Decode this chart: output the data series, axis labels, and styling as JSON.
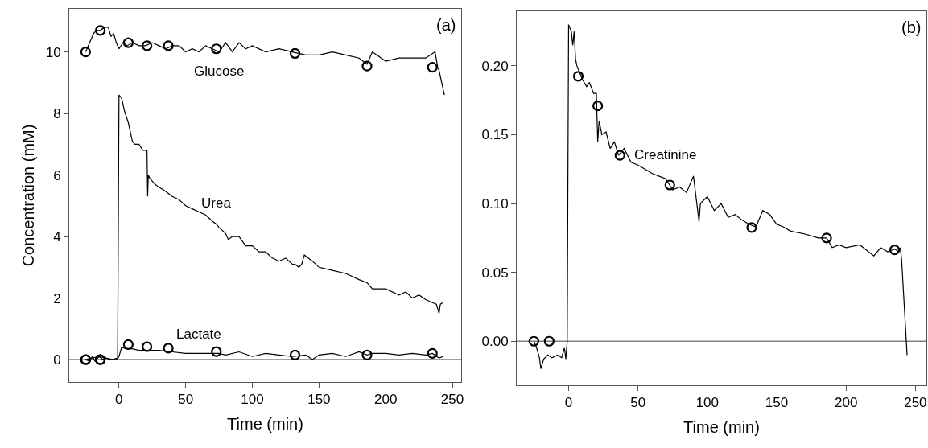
{
  "chart_data": [
    {
      "type": "line",
      "xlabel": "Time (min)",
      "ylabel": "Concentration (mM)",
      "xlim": [
        -37.3,
        256.6
      ],
      "ylim": [
        -0.73,
        11.4
      ],
      "xticks": [
        0,
        50,
        100,
        150,
        200,
        250
      ],
      "yticks": [
        0,
        2,
        4,
        6,
        8,
        10
      ],
      "grid": false,
      "legend": false,
      "ref_lines": [
        {
          "axis": "y",
          "value": 0,
          "color": "#808080"
        }
      ],
      "annotations": [
        "(a)"
      ],
      "series": [
        {
          "name": "Glucose",
          "marker": "none",
          "color": "#000000",
          "x": [
            -25,
            -22,
            -19,
            -17,
            -14,
            -11,
            -8,
            -6,
            -4,
            -2,
            0,
            3,
            6,
            10,
            15,
            20,
            25,
            30,
            35,
            40,
            45,
            50,
            55,
            60,
            65,
            70,
            75,
            80,
            85,
            90,
            95,
            100,
            110,
            120,
            130,
            140,
            150,
            160,
            170,
            180,
            186,
            190,
            200,
            210,
            220,
            230,
            237,
            239,
            240,
            242,
            244
          ],
          "values": [
            10.0,
            10.3,
            10.6,
            10.7,
            10.7,
            10.8,
            10.8,
            10.5,
            10.6,
            10.3,
            10.1,
            10.3,
            10.2,
            10.3,
            10.2,
            10.2,
            10.3,
            10.2,
            10.1,
            10.2,
            10.2,
            10.0,
            10.1,
            10.0,
            10.2,
            10.1,
            10.0,
            10.3,
            10.0,
            10.3,
            10.1,
            10.2,
            10.0,
            10.1,
            10.0,
            9.9,
            9.9,
            10.0,
            9.9,
            9.8,
            9.6,
            10.0,
            9.7,
            9.8,
            9.8,
            9.8,
            10.0,
            9.5,
            9.4,
            9.0,
            8.6
          ]
        },
        {
          "type": "scatter",
          "marker": "circle",
          "color": "#000000",
          "x": [
            -25,
            -14,
            7,
            21,
            37,
            73,
            132,
            186,
            235
          ],
          "values": [
            10.0,
            10.7,
            10.3,
            10.2,
            10.2,
            10.1,
            9.95,
            9.54,
            9.5
          ]
        },
        {
          "name": "Urea",
          "marker": "none",
          "color": "#000000",
          "x": [
            -25,
            -20,
            -15,
            -10,
            -5,
            -1,
            0,
            2,
            4,
            7,
            10,
            12,
            15,
            18,
            21,
            21.5,
            22,
            23,
            27,
            30,
            34,
            37,
            40,
            45,
            50,
            55,
            60,
            65,
            70,
            73,
            75,
            80,
            82,
            85,
            90,
            95,
            100,
            105,
            110,
            115,
            120,
            125,
            130,
            132,
            135,
            137,
            139,
            145,
            150,
            160,
            170,
            175,
            180,
            186,
            190,
            200,
            210,
            215,
            220,
            225,
            230,
            235,
            238,
            240,
            241,
            243
          ],
          "values": [
            0,
            0.05,
            0.1,
            0.05,
            0.0,
            0.05,
            8.6,
            8.5,
            8.1,
            7.7,
            7.1,
            7.0,
            7.0,
            6.8,
            6.8,
            5.3,
            6.0,
            5.9,
            5.7,
            5.6,
            5.5,
            5.4,
            5.3,
            5.2,
            5.0,
            4.9,
            4.8,
            4.7,
            4.5,
            4.4,
            4.3,
            4.1,
            3.9,
            4.0,
            4.0,
            3.7,
            3.7,
            3.5,
            3.5,
            3.3,
            3.2,
            3.3,
            3.1,
            3.1,
            3.0,
            3.1,
            3.4,
            3.2,
            3.0,
            2.9,
            2.8,
            2.7,
            2.6,
            2.5,
            2.3,
            2.3,
            2.1,
            2.2,
            2.0,
            2.1,
            1.95,
            1.85,
            1.8,
            1.5,
            1.8,
            1.85
          ]
        },
        {
          "type": "scatter",
          "marker": "circle",
          "color": "#000000",
          "x": [
            -25,
            -14
          ],
          "values": [
            0,
            0
          ]
        },
        {
          "name": "Lactate",
          "marker": "none",
          "color": "#000000",
          "x": [
            -25,
            -22,
            -20,
            -18,
            -15,
            -12,
            -10,
            -5,
            -2,
            0,
            2,
            5,
            10,
            15,
            20,
            25,
            30,
            40,
            50,
            60,
            70,
            75,
            80,
            90,
            100,
            110,
            120,
            130,
            140,
            145,
            150,
            160,
            170,
            180,
            186,
            190,
            200,
            210,
            220,
            230,
            235,
            240,
            243
          ],
          "values": [
            0,
            -0.05,
            0.1,
            -0.05,
            0.1,
            0,
            0.05,
            0,
            0,
            0.1,
            0.4,
            0.35,
            0.35,
            0.3,
            0.3,
            0.3,
            0.3,
            0.25,
            0.2,
            0.2,
            0.2,
            0.2,
            0.15,
            0.25,
            0.1,
            0.2,
            0.15,
            0.1,
            0.15,
            0,
            0.15,
            0.2,
            0.1,
            0.25,
            0.15,
            0.2,
            0.2,
            0.15,
            0.2,
            0.15,
            0.2,
            0.05,
            0.1
          ]
        },
        {
          "type": "scatter",
          "marker": "circle",
          "color": "#000000",
          "x": [
            -25,
            -14,
            7,
            21,
            37,
            73,
            132,
            186,
            235
          ],
          "values": [
            0,
            0,
            0.49,
            0.42,
            0.37,
            0.26,
            0.15,
            0.15,
            0.2
          ]
        }
      ]
    },
    {
      "type": "line",
      "xlabel": "Time (min)",
      "xlim": [
        -37.4,
        257.9
      ],
      "ylim": [
        -0.032,
        0.2397
      ],
      "xticks": [
        0,
        50,
        100,
        150,
        200,
        250
      ],
      "yticks": [
        {
          "value": 0,
          "label": "0.00"
        },
        {
          "value": 0.05,
          "label": "0.05"
        },
        {
          "value": 0.1,
          "label": "0.10"
        },
        {
          "value": 0.15,
          "label": "0.15"
        },
        {
          "value": 0.2,
          "label": "0.20"
        }
      ],
      "grid": false,
      "legend": false,
      "ref_lines": [
        {
          "axis": "y",
          "value": 0,
          "color": "#808080"
        }
      ],
      "annotations": [
        "(b)"
      ],
      "series": [
        {
          "name": "Creatinine",
          "marker": "none",
          "color": "#000000",
          "x": [
            -25,
            -23,
            -21,
            -20,
            -18,
            -15,
            -12,
            -8,
            -5,
            -3,
            -2,
            -1,
            0,
            2,
            3,
            4,
            5,
            6,
            8,
            10,
            13,
            15,
            18,
            20,
            21,
            22,
            24,
            27,
            30,
            33,
            36,
            40,
            45,
            50,
            55,
            60,
            65,
            70,
            75,
            80,
            85,
            90,
            94,
            95,
            100,
            105,
            110,
            115,
            120,
            125,
            130,
            135,
            140,
            145,
            150,
            155,
            160,
            170,
            180,
            186,
            190,
            195,
            200,
            210,
            220,
            225,
            230,
            235,
            238,
            239,
            240,
            242,
            244
          ],
          "values": [
            0,
            -0.005,
            -0.012,
            -0.02,
            -0.013,
            -0.01,
            -0.012,
            -0.01,
            -0.012,
            -0.005,
            -0.013,
            0,
            0.23,
            0.225,
            0.215,
            0.225,
            0.205,
            0.2,
            0.195,
            0.19,
            0.185,
            0.188,
            0.18,
            0.18,
            0.145,
            0.16,
            0.15,
            0.152,
            0.14,
            0.145,
            0.135,
            0.14,
            0.13,
            0.128,
            0.125,
            0.122,
            0.12,
            0.118,
            0.11,
            0.112,
            0.108,
            0.12,
            0.087,
            0.1,
            0.105,
            0.095,
            0.1,
            0.09,
            0.092,
            0.088,
            0.085,
            0.083,
            0.095,
            0.092,
            0.085,
            0.083,
            0.08,
            0.078,
            0.075,
            0.075,
            0.068,
            0.07,
            0.068,
            0.07,
            0.062,
            0.068,
            0.065,
            0.067,
            0.065,
            0.068,
            0.06,
            0.025,
            -0.01
          ]
        },
        {
          "type": "scatter",
          "marker": "circle",
          "color": "#000000",
          "x": [
            -25,
            -14,
            7,
            21,
            37,
            73,
            132,
            186,
            235
          ],
          "values": [
            0,
            0,
            0.1925,
            0.171,
            0.135,
            0.1135,
            0.0826,
            0.075,
            0.0664
          ]
        }
      ]
    }
  ]
}
